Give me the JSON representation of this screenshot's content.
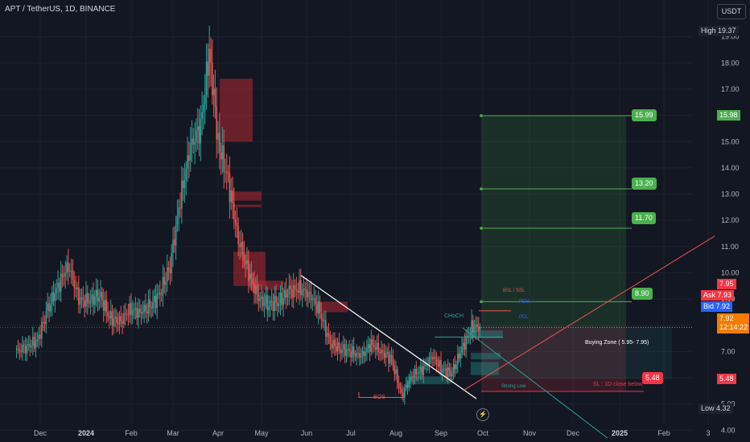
{
  "header": {
    "title": "APT / TetherUS, 1D, BINANCE",
    "currency_button": "USDT"
  },
  "chart_data": {
    "type": "line",
    "title": "APT / TetherUS, 1D, BINANCE",
    "xlabel": "",
    "ylabel": "",
    "ylim": [
      3.55,
      20.4
    ],
    "x_ticks": [
      "Dec",
      "2024",
      "Feb",
      "Mar",
      "Apr",
      "May",
      "Jun",
      "Jul",
      "Aug",
      "Sep",
      "Oct",
      "Nov",
      "Dec",
      "2025",
      "Feb",
      "3"
    ],
    "y_ticks": [
      "4.00",
      "5.00",
      "6.00",
      "7.00",
      "8.00",
      "9.00",
      "10.00",
      "11.00",
      "12.00",
      "13.00",
      "14.00",
      "15.00",
      "16.00",
      "17.00",
      "18.00",
      "19.00"
    ],
    "series": [
      {
        "name": "",
        "x": [
          "2023-11-15",
          "2023-11-22",
          "2023-11-29",
          "2023-12-06",
          "2023-12-13",
          "2023-12-20",
          "2023-12-27",
          "2024-01-03",
          "2024-01-10",
          "2024-01-17",
          "2024-01-24",
          "2024-01-31",
          "2024-02-07",
          "2024-02-14",
          "2024-02-21",
          "2024-02-28",
          "2024-03-06",
          "2024-03-13",
          "2024-03-20",
          "2024-03-26",
          "2024-04-01",
          "2024-04-08",
          "2024-04-15",
          "2024-04-22",
          "2024-04-29",
          "2024-05-06",
          "2024-05-13",
          "2024-05-20",
          "2024-05-27",
          "2024-06-03",
          "2024-06-10",
          "2024-06-17",
          "2024-06-24",
          "2024-07-01",
          "2024-07-08",
          "2024-07-15",
          "2024-07-22",
          "2024-07-29",
          "2024-08-05",
          "2024-08-12",
          "2024-08-19",
          "2024-08-26",
          "2024-09-02",
          "2024-09-09",
          "2024-09-16",
          "2024-09-23",
          "2024-09-29"
        ],
        "values": [
          7.0,
          7.2,
          7.4,
          8.6,
          9.5,
          10.3,
          9.0,
          8.9,
          9.2,
          8.3,
          8.1,
          8.6,
          8.5,
          8.7,
          9.2,
          10.3,
          12.8,
          14.8,
          15.6,
          18.4,
          15.0,
          13.5,
          11.3,
          10.0,
          9.0,
          8.8,
          8.9,
          9.3,
          9.4,
          9.2,
          8.5,
          7.3,
          7.1,
          7.0,
          6.8,
          7.3,
          7.0,
          6.7,
          5.3,
          6.1,
          6.3,
          6.8,
          6.3,
          6.2,
          7.1,
          7.9,
          7.92
        ]
      }
    ],
    "high": "19.37",
    "low": "4.32",
    "last_price": "7.92",
    "countdown": "12:14:22",
    "ask": {
      "label": "Ask",
      "value": "7.93"
    },
    "bid": {
      "label": "Bid",
      "value": "7.92"
    },
    "price_tags": [
      "15.98",
      "7.95",
      "5.48"
    ],
    "targets": [
      {
        "value": "15.99",
        "price": 15.99
      },
      {
        "value": "13.20",
        "price": 13.2
      },
      {
        "value": "11.70",
        "price": 11.7
      },
      {
        "value": "8.90",
        "price": 8.9
      }
    ],
    "stop_loss": {
      "value": "5.48",
      "price": 5.48,
      "note": "SL : 1D close below"
    },
    "buying_zone": "Buying Zone ( 5.95- 7.95)",
    "annotations": {
      "bos": "BOS",
      "choch": "CHoCH",
      "pdh": "PDH",
      "strong_low": "Strong Low",
      "pdl": "PDL",
      "sml_top": "BSL / SSL"
    }
  },
  "colors": {
    "background": "#131722",
    "bull": "#26a69a",
    "bear": "#ef5350",
    "target": "#4caf50",
    "stop": "#f23645",
    "buying_zone_text": "#ffffff"
  }
}
